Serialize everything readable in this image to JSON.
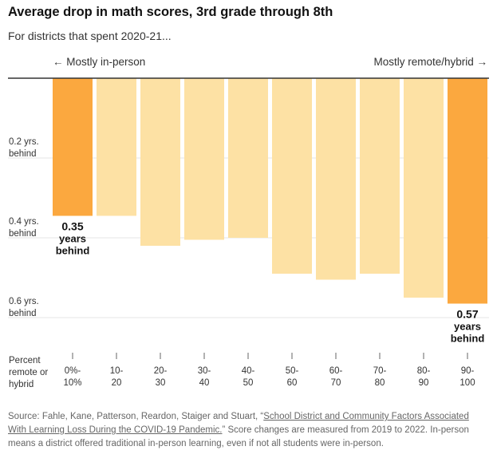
{
  "title": "Average drop in math scores, 3rd grade through 8th",
  "subtitle": "For districts that spent 2020-21...",
  "direction_left": "← Mostly in-person",
  "direction_right": "Mostly remote/hybrid →",
  "axis_label": [
    "Percent",
    "remote or",
    "hybrid"
  ],
  "source": {
    "prefix": "Source: Fahle, Kane, Patterson, Reardon, Staiger and Stuart, “",
    "link_text": "School District and Community Factors Associated With Learning Loss During the COVID-19 Pandemic.",
    "suffix": "” Score changes are measured from 2019 to 2022. In-person means a district offered traditional in-person learning, even if not all students were in-person."
  },
  "chart_data": {
    "type": "bar",
    "categories": [
      [
        "0%-",
        "10%"
      ],
      [
        "10-",
        "20"
      ],
      [
        "20-",
        "30"
      ],
      [
        "30-",
        "40"
      ],
      [
        "40-",
        "50"
      ],
      [
        "50-",
        "60"
      ],
      [
        "60-",
        "70"
      ],
      [
        "70-",
        "80"
      ],
      [
        "80-",
        "90"
      ],
      [
        "90-",
        "100"
      ]
    ],
    "values": [
      0.345,
      0.345,
      0.42,
      0.405,
      0.4,
      0.49,
      0.505,
      0.49,
      0.55,
      0.565
    ],
    "highlight": [
      0,
      9
    ],
    "ylim": [
      0,
      0.6
    ],
    "y_ticks": [
      {
        "value": 0.2,
        "label": [
          "0.2 yrs.",
          "behind"
        ]
      },
      {
        "value": 0.4,
        "label": [
          "0.4 yrs.",
          "behind"
        ]
      },
      {
        "value": 0.6,
        "label": [
          "0.6 yrs.",
          "behind"
        ]
      }
    ],
    "annotations": [
      {
        "index": 0,
        "lines": [
          "0.35",
          "years",
          "behind"
        ]
      },
      {
        "index": 9,
        "lines": [
          "0.57",
          "years",
          "behind"
        ]
      }
    ],
    "colors": {
      "highlight": "#fba83f",
      "normal": "#fde1a4",
      "grid": "#e6e6e6",
      "baseline": "#333333"
    }
  }
}
